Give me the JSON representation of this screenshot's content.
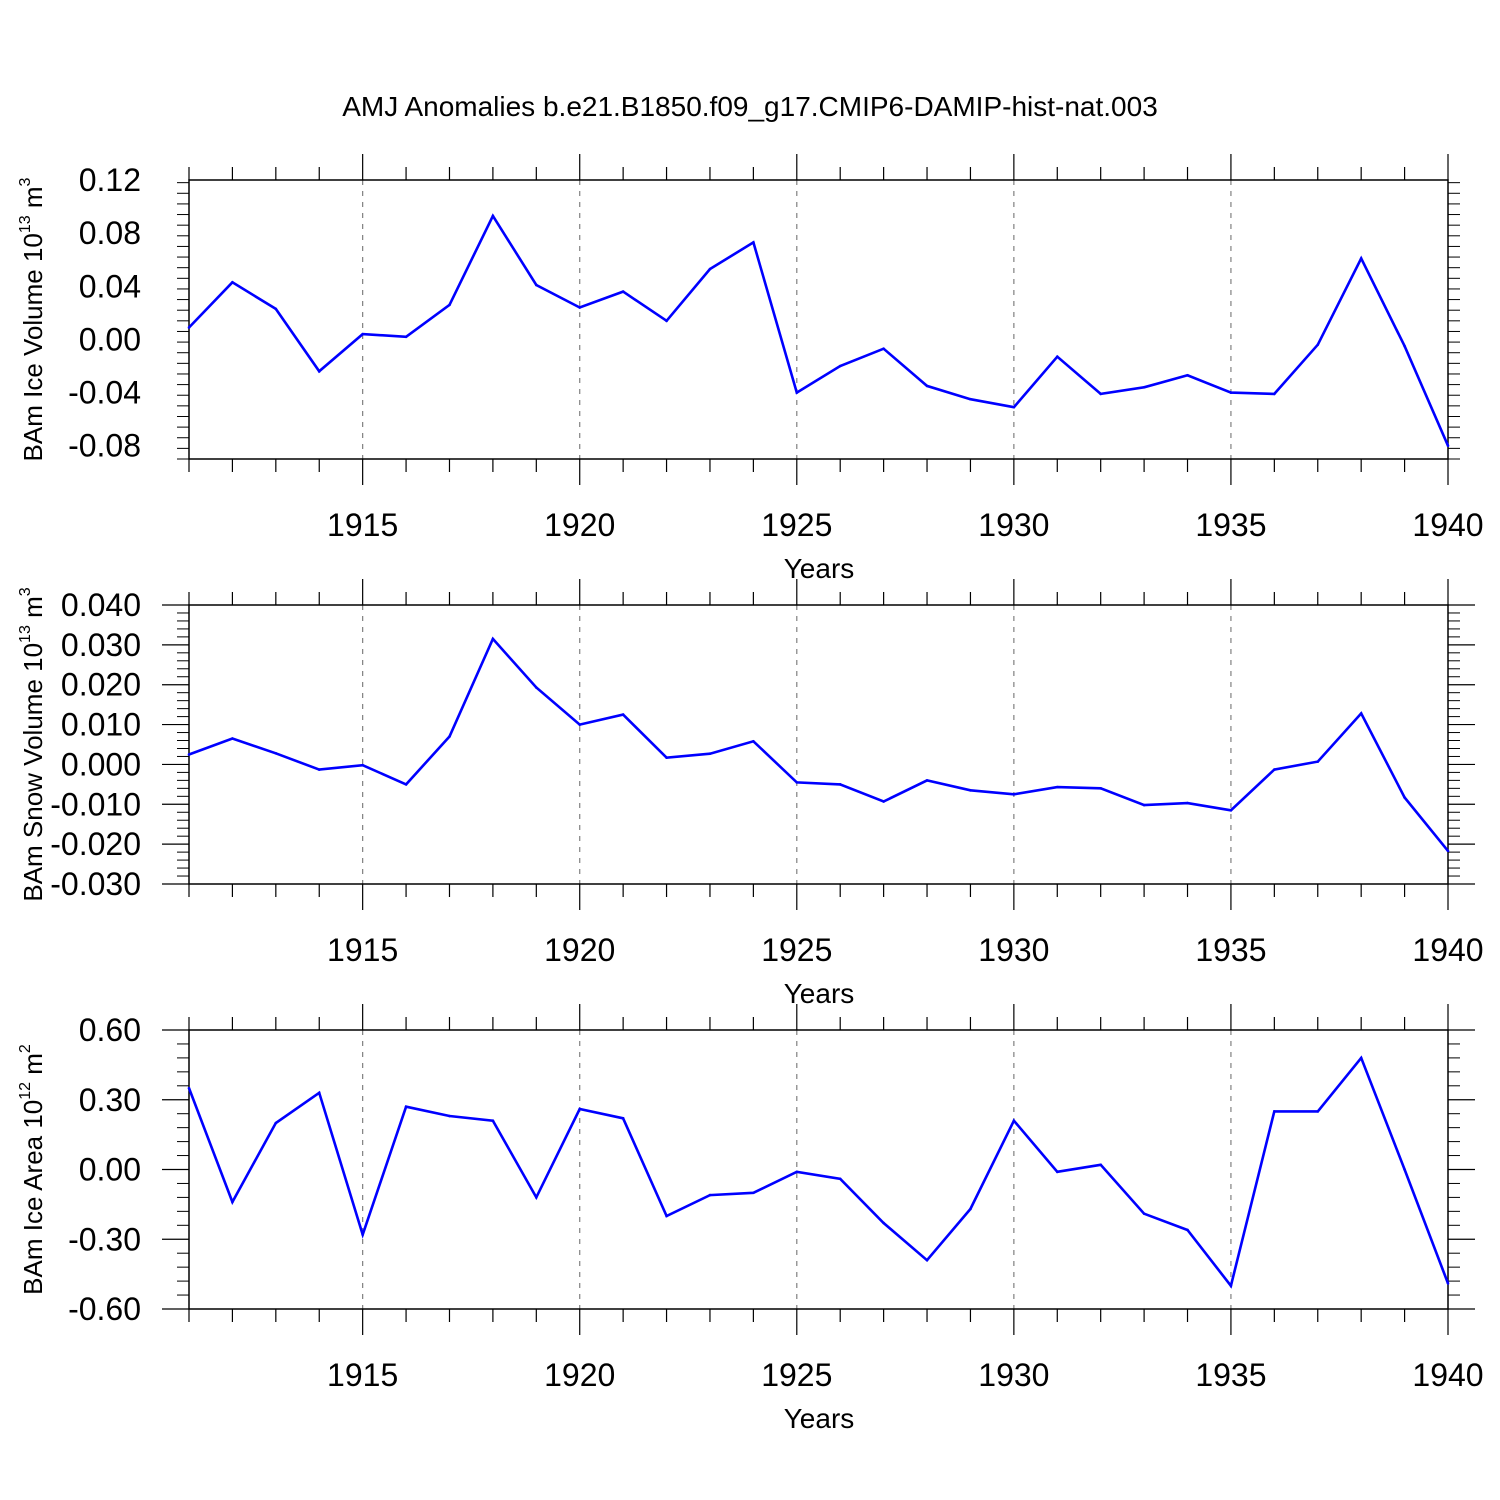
{
  "title": "AMJ Anomalies b.e21.B1850.f09_g17.CMIP6-DAMIP-hist-nat.003",
  "colors": {
    "line": "#0000ff",
    "axis": "#000000",
    "grid": "#808080"
  },
  "chart_data": [
    {
      "type": "line",
      "ylabel": "BAm Ice Volume 10",
      "ylabel_exp": "13",
      "ylabel_unit": " m",
      "ylabel_unit_exp": "3",
      "xlabel": "Years",
      "xlim": [
        1911,
        1940
      ],
      "ylim": [
        -0.09,
        0.12
      ],
      "yticks": [
        0.12,
        0.08,
        0.04,
        0.0,
        -0.04,
        -0.08
      ],
      "ytick_labels": [
        "0.12",
        "0.08",
        "0.04",
        "0.00",
        "-0.04",
        "-0.08"
      ],
      "xticks": [
        1915,
        1920,
        1925,
        1930,
        1935,
        1940
      ],
      "xtick_labels": [
        "1915",
        "1920",
        "1925",
        "1930",
        "1935",
        "1940"
      ],
      "grid": "vertical dashed at major x ticks",
      "x": [
        1911,
        1912,
        1913,
        1914,
        1915,
        1916,
        1917,
        1918,
        1919,
        1920,
        1921,
        1922,
        1923,
        1924,
        1925,
        1926,
        1927,
        1928,
        1929,
        1930,
        1931,
        1932,
        1933,
        1934,
        1935,
        1936,
        1937,
        1938,
        1939,
        1940
      ],
      "values": [
        0.009,
        0.043,
        0.023,
        -0.024,
        0.004,
        0.002,
        0.026,
        0.093,
        0.041,
        0.024,
        0.036,
        0.014,
        0.053,
        0.073,
        -0.04,
        -0.02,
        -0.007,
        -0.035,
        -0.045,
        -0.051,
        -0.013,
        -0.041,
        -0.036,
        -0.027,
        -0.04,
        -0.041,
        -0.004,
        0.061,
        -0.005,
        -0.08
      ]
    },
    {
      "type": "line",
      "ylabel": "BAm Snow Volume 10",
      "ylabel_exp": "13",
      "ylabel_unit": " m",
      "ylabel_unit_exp": "3",
      "xlabel": "Years",
      "xlim": [
        1911,
        1940
      ],
      "ylim": [
        -0.03,
        0.04
      ],
      "yticks": [
        0.04,
        0.03,
        0.02,
        0.01,
        0.0,
        -0.01,
        -0.02,
        -0.03
      ],
      "ytick_labels": [
        "0.040",
        "0.030",
        "0.020",
        "0.010",
        "0.000",
        "-0.010",
        "-0.020",
        "-0.030"
      ],
      "xticks": [
        1915,
        1920,
        1925,
        1930,
        1935,
        1940
      ],
      "xtick_labels": [
        "1915",
        "1920",
        "1925",
        "1930",
        "1935",
        "1940"
      ],
      "grid": "vertical dashed at major x ticks",
      "x": [
        1911,
        1912,
        1913,
        1914,
        1915,
        1916,
        1917,
        1918,
        1919,
        1920,
        1921,
        1922,
        1923,
        1924,
        1925,
        1926,
        1927,
        1928,
        1929,
        1930,
        1931,
        1932,
        1933,
        1934,
        1935,
        1936,
        1937,
        1938,
        1939,
        1940
      ],
      "values": [
        0.0025,
        0.0065,
        0.0028,
        -0.0013,
        -0.0002,
        -0.005,
        0.007,
        0.0315,
        0.0193,
        0.01,
        0.0125,
        0.0017,
        0.0027,
        0.0058,
        -0.0045,
        -0.005,
        -0.0093,
        -0.004,
        -0.0065,
        -0.0075,
        -0.0057,
        -0.006,
        -0.0102,
        -0.0097,
        -0.0115,
        -0.0013,
        0.0007,
        0.0128,
        -0.0083,
        -0.0217
      ]
    },
    {
      "type": "line",
      "ylabel": "BAm Ice Area 10",
      "ylabel_exp": "12",
      "ylabel_unit": " m",
      "ylabel_unit_exp": "2",
      "xlabel": "Years",
      "xlim": [
        1911,
        1940
      ],
      "ylim": [
        -0.6,
        0.6
      ],
      "yticks": [
        0.6,
        0.3,
        0.0,
        -0.3,
        -0.6
      ],
      "ytick_labels": [
        "0.60",
        "0.30",
        "0.00",
        "-0.30",
        "-0.60"
      ],
      "xticks": [
        1915,
        1920,
        1925,
        1930,
        1935,
        1940
      ],
      "xtick_labels": [
        "1915",
        "1920",
        "1925",
        "1930",
        "1935",
        "1940"
      ],
      "grid": "vertical dashed at major x ticks",
      "x": [
        1911,
        1912,
        1913,
        1914,
        1915,
        1916,
        1917,
        1918,
        1919,
        1920,
        1921,
        1922,
        1923,
        1924,
        1925,
        1926,
        1927,
        1928,
        1929,
        1930,
        1931,
        1932,
        1933,
        1934,
        1935,
        1936,
        1937,
        1938,
        1939,
        1940
      ],
      "values": [
        0.35,
        -0.14,
        0.2,
        0.33,
        -0.28,
        0.27,
        0.23,
        0.21,
        -0.12,
        0.26,
        0.22,
        -0.2,
        -0.11,
        -0.1,
        -0.01,
        -0.04,
        -0.23,
        -0.39,
        -0.17,
        0.21,
        -0.01,
        0.02,
        -0.19,
        -0.26,
        -0.5,
        0.25,
        0.25,
        0.48,
        0.0,
        -0.49
      ]
    }
  ]
}
